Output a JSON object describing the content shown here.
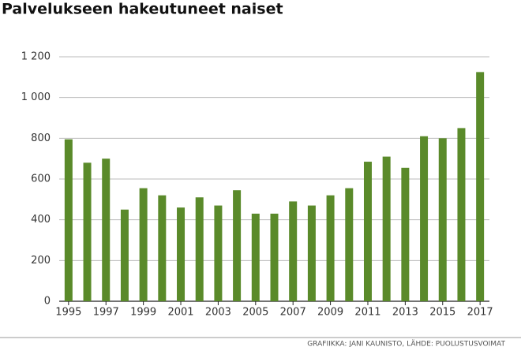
{
  "chart_data": {
    "type": "bar",
    "title": "Palvelukseen hakeutuneet naiset",
    "categories": [
      "1995",
      null,
      "1997",
      null,
      "1999",
      null,
      "2001",
      null,
      "2003",
      null,
      "2005",
      null,
      "2007",
      null,
      "2009",
      null,
      "2011",
      null,
      "2013",
      null,
      "2015",
      null,
      "2017"
    ],
    "values": [
      795,
      680,
      700,
      450,
      555,
      520,
      460,
      510,
      470,
      545,
      430,
      430,
      490,
      470,
      520,
      555,
      685,
      710,
      655,
      810,
      800,
      850,
      1125
    ],
    "color": "#5a8a2a",
    "ylim": [
      0,
      1200
    ],
    "yticks": [
      0,
      200,
      400,
      600,
      800,
      {
        "value": 1000,
        "label": "1 000"
      },
      {
        "value": 1200,
        "label": "1 200"
      }
    ],
    "grid": true,
    "source": "GRAFIIKKA: JANI KAUNISTO, LÄHDE: PUOLUSTUSVOIMAT"
  }
}
